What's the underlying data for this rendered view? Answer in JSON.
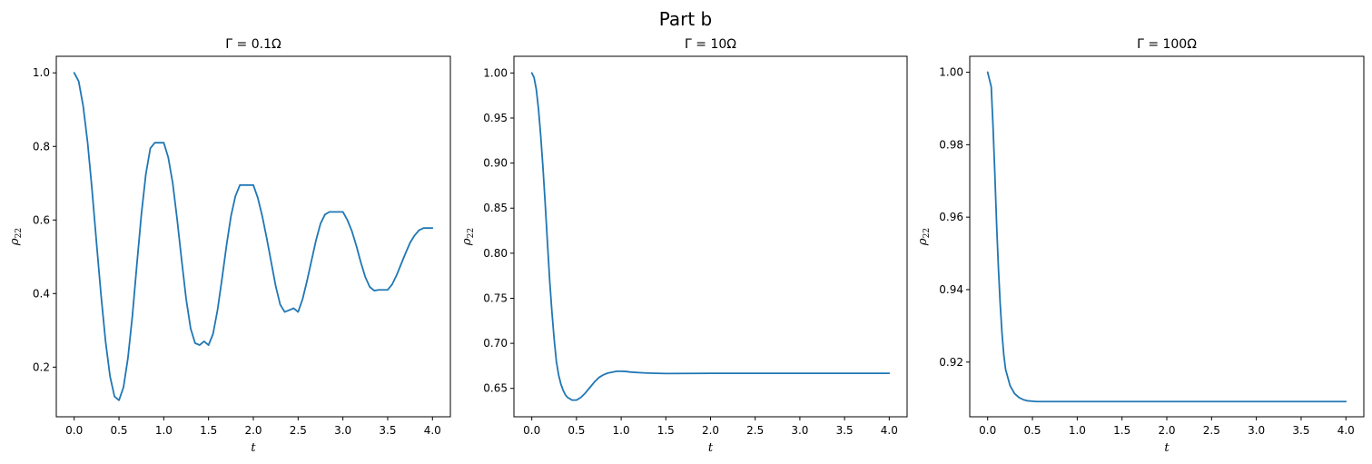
{
  "figure": {
    "suptitle": "Part b"
  },
  "colors": {
    "series": "#1f77b4",
    "axes": "#000000",
    "background": "#ffffff"
  },
  "chart_data": [
    {
      "type": "line",
      "title": "Γ = 0.1Ω",
      "xlabel": "t",
      "ylabel": "ρ22",
      "xlim": [
        -0.2,
        4.2
      ],
      "ylim": [
        0.065,
        1.045
      ],
      "xticks": [
        0.0,
        0.5,
        1.0,
        1.5,
        2.0,
        2.5,
        3.0,
        3.5,
        4.0
      ],
      "xtick_labels": [
        "0.0",
        "0.5",
        "1.0",
        "1.5",
        "2.0",
        "2.5",
        "3.0",
        "3.5",
        "4.0"
      ],
      "yticks": [
        0.2,
        0.4,
        0.6,
        0.8,
        1.0
      ],
      "ytick_labels": [
        "0.2",
        "0.4",
        "0.6",
        "0.8",
        "1.0"
      ],
      "grid": false,
      "series": [
        {
          "x": [
            0.0,
            0.05,
            0.1,
            0.15,
            0.2,
            0.25,
            0.3,
            0.35,
            0.4,
            0.45,
            0.5,
            0.55,
            0.6,
            0.65,
            0.7,
            0.75,
            0.8,
            0.85,
            0.9,
            0.95,
            1.0,
            1.05,
            1.1,
            1.15,
            1.2,
            1.25,
            1.3,
            1.35,
            1.4,
            1.45,
            1.5,
            1.55,
            1.6,
            1.65,
            1.7,
            1.75,
            1.8,
            1.85,
            1.9,
            1.95,
            2.0,
            2.05,
            2.1,
            2.15,
            2.2,
            2.25,
            2.3,
            2.35,
            2.4,
            2.45,
            2.5,
            2.55,
            2.6,
            2.65,
            2.7,
            2.75,
            2.8,
            2.85,
            2.9,
            2.95,
            3.0,
            3.05,
            3.1,
            3.15,
            3.2,
            3.25,
            3.3,
            3.35,
            3.4,
            3.45,
            3.5,
            3.55,
            3.6,
            3.65,
            3.7,
            3.75,
            3.8,
            3.85,
            3.9,
            3.95,
            4.0
          ],
          "y": [
            1.0,
            0.977,
            0.91,
            0.81,
            0.68,
            0.535,
            0.395,
            0.27,
            0.175,
            0.12,
            0.11,
            0.145,
            0.225,
            0.34,
            0.48,
            0.615,
            0.725,
            0.795,
            0.81,
            0.81,
            0.81,
            0.77,
            0.7,
            0.6,
            0.49,
            0.385,
            0.305,
            0.265,
            0.26,
            0.27,
            0.26,
            0.29,
            0.355,
            0.44,
            0.53,
            0.61,
            0.665,
            0.695,
            0.695,
            0.695,
            0.695,
            0.66,
            0.61,
            0.55,
            0.485,
            0.42,
            0.37,
            0.35,
            0.355,
            0.36,
            0.35,
            0.385,
            0.435,
            0.49,
            0.545,
            0.59,
            0.615,
            0.622,
            0.622,
            0.622,
            0.622,
            0.6,
            0.57,
            0.53,
            0.485,
            0.445,
            0.418,
            0.408,
            0.41,
            0.41,
            0.41,
            0.425,
            0.45,
            0.48,
            0.51,
            0.538,
            0.558,
            0.572,
            0.578,
            0.578,
            0.578
          ]
        }
      ]
    },
    {
      "type": "line",
      "title": "Γ = 10Ω",
      "xlabel": "t",
      "ylabel": "ρ22",
      "xlim": [
        -0.2,
        4.2
      ],
      "ylim": [
        0.6185,
        1.0185
      ],
      "xticks": [
        0.0,
        0.5,
        1.0,
        1.5,
        2.0,
        2.5,
        3.0,
        3.5,
        4.0
      ],
      "xtick_labels": [
        "0.0",
        "0.5",
        "1.0",
        "1.5",
        "2.0",
        "2.5",
        "3.0",
        "3.5",
        "4.0"
      ],
      "yticks": [
        0.65,
        0.7,
        0.75,
        0.8,
        0.85,
        0.9,
        0.95,
        1.0
      ],
      "ytick_labels": [
        "0.65",
        "0.70",
        "0.75",
        "0.80",
        "0.85",
        "0.90",
        "0.95",
        "1.00"
      ],
      "grid": false,
      "series": [
        {
          "x": [
            0.0,
            0.025,
            0.05,
            0.075,
            0.1,
            0.125,
            0.15,
            0.175,
            0.2,
            0.225,
            0.25,
            0.275,
            0.3,
            0.325,
            0.35,
            0.375,
            0.4,
            0.45,
            0.5,
            0.55,
            0.6,
            0.65,
            0.7,
            0.75,
            0.8,
            0.85,
            0.9,
            0.95,
            1.0,
            1.05,
            1.1,
            1.2,
            1.3,
            1.4,
            1.5,
            1.75,
            2.0,
            2.5,
            3.0,
            3.5,
            4.0
          ],
          "y": [
            1.0,
            0.995,
            0.982,
            0.96,
            0.93,
            0.895,
            0.855,
            0.812,
            0.77,
            0.735,
            0.705,
            0.68,
            0.665,
            0.655,
            0.648,
            0.643,
            0.64,
            0.637,
            0.637,
            0.64,
            0.645,
            0.651,
            0.657,
            0.662,
            0.665,
            0.667,
            0.668,
            0.669,
            0.669,
            0.6688,
            0.6682,
            0.6675,
            0.667,
            0.6667,
            0.6665,
            0.6666,
            0.6667,
            0.6667,
            0.6667,
            0.6667,
            0.6667
          ]
        }
      ]
    },
    {
      "type": "line",
      "title": "Γ = 100Ω",
      "xlabel": "t",
      "ylabel": "ρ22",
      "xlim": [
        -0.2,
        4.2
      ],
      "ylim": [
        0.9049,
        1.0044
      ],
      "xticks": [
        0.0,
        0.5,
        1.0,
        1.5,
        2.0,
        2.5,
        3.0,
        3.5,
        4.0
      ],
      "xtick_labels": [
        "0.0",
        "0.5",
        "1.0",
        "1.5",
        "2.0",
        "2.5",
        "3.0",
        "3.5",
        "4.0"
      ],
      "yticks": [
        0.92,
        0.94,
        0.96,
        0.98,
        1.0
      ],
      "ytick_labels": [
        "0.92",
        "0.94",
        "0.96",
        "0.98",
        "1.00"
      ],
      "grid": false,
      "series": [
        {
          "x": [
            0.0,
            0.02,
            0.04,
            0.06,
            0.08,
            0.1,
            0.12,
            0.14,
            0.16,
            0.18,
            0.2,
            0.25,
            0.3,
            0.35,
            0.4,
            0.45,
            0.5,
            0.55,
            0.6,
            0.7,
            0.8,
            1.0,
            1.5,
            2.0,
            2.5,
            3.0,
            3.5,
            4.0
          ],
          "y": [
            1.0,
            0.998,
            0.996,
            0.985,
            0.972,
            0.958,
            0.946,
            0.936,
            0.928,
            0.922,
            0.918,
            0.9135,
            0.9113,
            0.9102,
            0.9096,
            0.9093,
            0.9092,
            0.9091,
            0.9091,
            0.9091,
            0.9091,
            0.9091,
            0.9091,
            0.9091,
            0.9091,
            0.9091,
            0.9091,
            0.9091
          ]
        }
      ]
    }
  ]
}
